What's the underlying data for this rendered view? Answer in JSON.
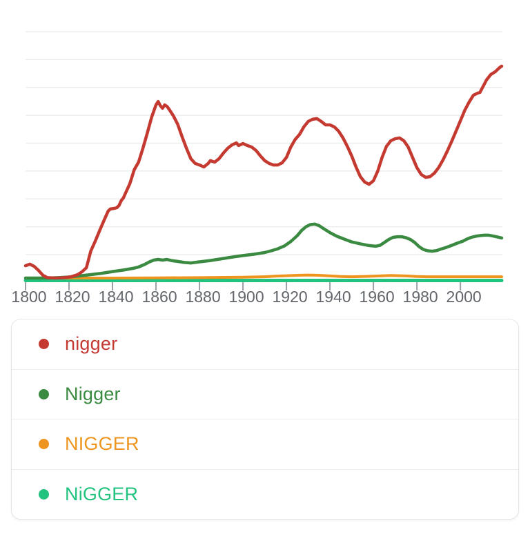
{
  "chart": {
    "colors": {
      "gridline": "#ededed",
      "tick": "#9aa0a6",
      "tick_label": "#63666a",
      "red": "#c43a31",
      "dark_green": "#3a8a42",
      "orange": "#ee951f",
      "spring_green": "#22c27f"
    }
  },
  "legend": {
    "items": [
      {
        "label": "nigger",
        "color": "#c43a31"
      },
      {
        "label": "Nigger",
        "color": "#3a8a42"
      },
      {
        "label": "NIGGER",
        "color": "#ee951f"
      },
      {
        "label": "NiGGER",
        "color": "#22c27f"
      }
    ]
  },
  "chart_data": {
    "type": "line",
    "title": "",
    "xlabel": "",
    "ylabel": "",
    "x_range": [
      1800,
      2019
    ],
    "x_ticks": [
      1800,
      1820,
      1840,
      1860,
      1880,
      1900,
      1920,
      1940,
      1960,
      1980,
      2000
    ],
    "y_axis_visible": false,
    "y_unit": "relative usage frequency (axis unlabeled; 100 = chart maximum)",
    "grid": "horizontal",
    "legend_position": "bottom card",
    "series": [
      {
        "name": "nigger",
        "color": "#c43a31",
        "points": [
          [
            1800,
            7.6
          ],
          [
            1802,
            8.3
          ],
          [
            1804,
            7.3
          ],
          [
            1806,
            5.4
          ],
          [
            1808,
            3.2
          ],
          [
            1810,
            2.1
          ],
          [
            1814,
            1.9
          ],
          [
            1818,
            2.1
          ],
          [
            1821,
            2.5
          ],
          [
            1824,
            3.5
          ],
          [
            1826,
            4.8
          ],
          [
            1828,
            6.7
          ],
          [
            1830,
            14.3
          ],
          [
            1832,
            18.8
          ],
          [
            1834,
            23.6
          ],
          [
            1836,
            28.3
          ],
          [
            1837,
            30.6
          ],
          [
            1838,
            32.8
          ],
          [
            1839,
            33.8
          ],
          [
            1841,
            34.1
          ],
          [
            1842,
            34.4
          ],
          [
            1843,
            35.4
          ],
          [
            1844,
            37.6
          ],
          [
            1845,
            38.9
          ],
          [
            1846,
            41.1
          ],
          [
            1848,
            45.5
          ],
          [
            1850,
            51.9
          ],
          [
            1852,
            55.4
          ],
          [
            1854,
            61.8
          ],
          [
            1856,
            68.8
          ],
          [
            1858,
            76.1
          ],
          [
            1860,
            81.8
          ],
          [
            1861,
            83.4
          ],
          [
            1862,
            81.5
          ],
          [
            1863,
            80.3
          ],
          [
            1864,
            81.8
          ],
          [
            1865,
            81.2
          ],
          [
            1866,
            79.9
          ],
          [
            1868,
            76.8
          ],
          [
            1870,
            72.9
          ],
          [
            1872,
            67.2
          ],
          [
            1874,
            61.8
          ],
          [
            1876,
            57.0
          ],
          [
            1878,
            54.8
          ],
          [
            1880,
            54.1
          ],
          [
            1882,
            53.2
          ],
          [
            1884,
            54.8
          ],
          [
            1885,
            56.1
          ],
          [
            1887,
            55.4
          ],
          [
            1889,
            57.0
          ],
          [
            1891,
            59.6
          ],
          [
            1893,
            61.8
          ],
          [
            1895,
            63.4
          ],
          [
            1897,
            64.3
          ],
          [
            1898,
            63.1
          ],
          [
            1900,
            64.0
          ],
          [
            1902,
            63.1
          ],
          [
            1904,
            62.4
          ],
          [
            1906,
            60.8
          ],
          [
            1908,
            58.3
          ],
          [
            1910,
            56.1
          ],
          [
            1912,
            54.8
          ],
          [
            1914,
            54.1
          ],
          [
            1916,
            54.1
          ],
          [
            1918,
            55.1
          ],
          [
            1920,
            57.6
          ],
          [
            1922,
            62.4
          ],
          [
            1924,
            65.9
          ],
          [
            1926,
            68.2
          ],
          [
            1928,
            71.7
          ],
          [
            1930,
            74.2
          ],
          [
            1932,
            75.2
          ],
          [
            1934,
            75.5
          ],
          [
            1936,
            74.2
          ],
          [
            1938,
            72.6
          ],
          [
            1940,
            72.6
          ],
          [
            1942,
            71.7
          ],
          [
            1944,
            69.7
          ],
          [
            1946,
            66.6
          ],
          [
            1948,
            62.7
          ],
          [
            1950,
            58.3
          ],
          [
            1952,
            53.2
          ],
          [
            1954,
            48.7
          ],
          [
            1956,
            46.2
          ],
          [
            1958,
            45.2
          ],
          [
            1960,
            46.8
          ],
          [
            1962,
            51.3
          ],
          [
            1964,
            57.6
          ],
          [
            1966,
            62.7
          ],
          [
            1968,
            65.3
          ],
          [
            1970,
            66.2
          ],
          [
            1972,
            66.6
          ],
          [
            1974,
            65.3
          ],
          [
            1976,
            62.4
          ],
          [
            1978,
            57.6
          ],
          [
            1980,
            52.9
          ],
          [
            1982,
            49.7
          ],
          [
            1984,
            48.4
          ],
          [
            1986,
            48.7
          ],
          [
            1988,
            50.3
          ],
          [
            1990,
            52.9
          ],
          [
            1992,
            56.4
          ],
          [
            1994,
            60.5
          ],
          [
            1996,
            65.0
          ],
          [
            1998,
            69.7
          ],
          [
            2000,
            74.5
          ],
          [
            2002,
            79.3
          ],
          [
            2004,
            83.1
          ],
          [
            2006,
            86.3
          ],
          [
            2008,
            87.3
          ],
          [
            2009,
            87.6
          ],
          [
            2010,
            89.5
          ],
          [
            2012,
            93.3
          ],
          [
            2014,
            95.9
          ],
          [
            2016,
            97.1
          ],
          [
            2018,
            99.0
          ],
          [
            2019,
            99.7
          ]
        ]
      },
      {
        "name": "Nigger",
        "color": "#3a8a42",
        "points": [
          [
            1800,
            1.9
          ],
          [
            1810,
            1.9
          ],
          [
            1815,
            2.1
          ],
          [
            1820,
            2.4
          ],
          [
            1825,
            2.9
          ],
          [
            1830,
            3.5
          ],
          [
            1835,
            4.1
          ],
          [
            1840,
            4.9
          ],
          [
            1845,
            5.6
          ],
          [
            1850,
            6.5
          ],
          [
            1852,
            7.0
          ],
          [
            1855,
            8.3
          ],
          [
            1857,
            9.4
          ],
          [
            1859,
            10.2
          ],
          [
            1861,
            10.5
          ],
          [
            1863,
            10.2
          ],
          [
            1865,
            10.5
          ],
          [
            1867,
            10.0
          ],
          [
            1870,
            9.6
          ],
          [
            1873,
            9.1
          ],
          [
            1876,
            8.9
          ],
          [
            1880,
            9.4
          ],
          [
            1885,
            10.0
          ],
          [
            1890,
            10.8
          ],
          [
            1895,
            11.6
          ],
          [
            1900,
            12.3
          ],
          [
            1905,
            12.9
          ],
          [
            1910,
            13.7
          ],
          [
            1913,
            14.5
          ],
          [
            1916,
            15.4
          ],
          [
            1919,
            16.7
          ],
          [
            1922,
            18.8
          ],
          [
            1925,
            21.5
          ],
          [
            1927,
            23.9
          ],
          [
            1929,
            25.6
          ],
          [
            1931,
            26.6
          ],
          [
            1933,
            26.8
          ],
          [
            1935,
            26.1
          ],
          [
            1937,
            24.8
          ],
          [
            1940,
            22.9
          ],
          [
            1943,
            21.3
          ],
          [
            1946,
            20.1
          ],
          [
            1950,
            18.6
          ],
          [
            1954,
            17.7
          ],
          [
            1958,
            16.9
          ],
          [
            1961,
            16.6
          ],
          [
            1963,
            17.0
          ],
          [
            1965,
            18.3
          ],
          [
            1967,
            19.7
          ],
          [
            1969,
            20.7
          ],
          [
            1971,
            21.0
          ],
          [
            1973,
            21.0
          ],
          [
            1975,
            20.5
          ],
          [
            1977,
            19.7
          ],
          [
            1979,
            18.3
          ],
          [
            1981,
            16.4
          ],
          [
            1983,
            15.1
          ],
          [
            1985,
            14.5
          ],
          [
            1987,
            14.3
          ],
          [
            1989,
            14.6
          ],
          [
            1991,
            15.3
          ],
          [
            1993,
            15.9
          ],
          [
            1995,
            16.6
          ],
          [
            1997,
            17.4
          ],
          [
            1999,
            18.2
          ],
          [
            2001,
            18.9
          ],
          [
            2003,
            19.9
          ],
          [
            2005,
            20.7
          ],
          [
            2007,
            21.2
          ],
          [
            2009,
            21.5
          ],
          [
            2011,
            21.7
          ],
          [
            2013,
            21.7
          ],
          [
            2015,
            21.3
          ],
          [
            2017,
            20.9
          ],
          [
            2019,
            20.4
          ]
        ]
      },
      {
        "name": "NIGGER",
        "color": "#ee951f",
        "points": [
          [
            1800,
            1.9
          ],
          [
            1840,
            1.9
          ],
          [
            1860,
            2.0
          ],
          [
            1880,
            2.1
          ],
          [
            1900,
            2.3
          ],
          [
            1910,
            2.5
          ],
          [
            1915,
            2.8
          ],
          [
            1920,
            3.0
          ],
          [
            1925,
            3.2
          ],
          [
            1930,
            3.3
          ],
          [
            1935,
            3.2
          ],
          [
            1940,
            2.9
          ],
          [
            1945,
            2.6
          ],
          [
            1950,
            2.5
          ],
          [
            1955,
            2.6
          ],
          [
            1960,
            2.8
          ],
          [
            1965,
            3.0
          ],
          [
            1968,
            3.1
          ],
          [
            1972,
            3.0
          ],
          [
            1975,
            2.9
          ],
          [
            1980,
            2.6
          ],
          [
            1985,
            2.5
          ],
          [
            1995,
            2.5
          ],
          [
            2005,
            2.5
          ],
          [
            2019,
            2.5
          ]
        ]
      },
      {
        "name": "NiGGER",
        "color": "#22c27f",
        "points": [
          [
            1800,
            0.8
          ],
          [
            2019,
            0.8
          ]
        ]
      }
    ]
  }
}
